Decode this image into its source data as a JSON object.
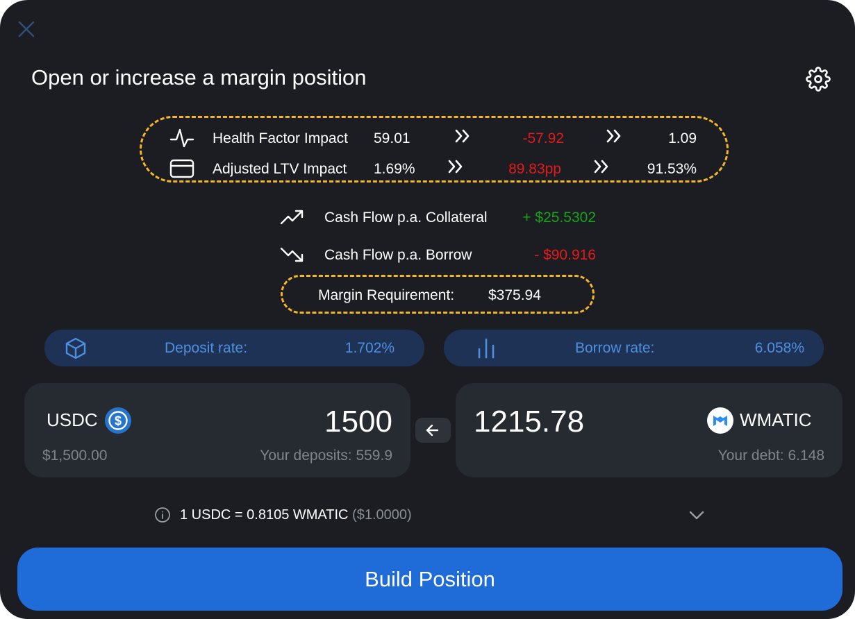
{
  "header": {
    "title": "Open or increase a margin position"
  },
  "impact": {
    "health": {
      "label": "Health Factor Impact",
      "current": "59.01",
      "delta": "-57.92",
      "result": "1.09"
    },
    "ltv": {
      "label": "Adjusted LTV Impact",
      "current": "1.69%",
      "delta": "89.83pp",
      "result": "91.53%"
    }
  },
  "cashflow": {
    "collateral": {
      "label": "Cash Flow p.a. Collateral",
      "value": "+ $25.5302"
    },
    "borrow": {
      "label": "Cash Flow p.a. Borrow",
      "value": "- $90.916"
    }
  },
  "margin": {
    "label": "Margin Requirement:",
    "value": "$375.94"
  },
  "rates": {
    "deposit": {
      "label": "Deposit rate:",
      "value": "1.702%"
    },
    "borrow": {
      "label": "Borrow rate:",
      "value": "6.058%"
    }
  },
  "deposit_card": {
    "token": "USDC",
    "amount": "1500",
    "usd_value": "$1,500.00",
    "balance": "Your deposits: 559.9"
  },
  "borrow_card": {
    "token": "WMATIC",
    "amount": "1215.78",
    "balance": "Your debt: 6.148"
  },
  "exchange": {
    "rate": "1 USDC = 0.8105 WMATIC",
    "usd": "($1.0000)"
  },
  "action": {
    "label": "Build Position"
  },
  "colors": {
    "background": "#1b1d22",
    "accent": "#1f6cd9",
    "highlight_border": "#f3b62b",
    "negative": "#e21b1b",
    "positive": "#19a319",
    "rate_text": "#4f8fe0",
    "rate_pill": "#1e3255"
  },
  "icons": {
    "close": "close-icon",
    "settings": "gear-icon",
    "health": "pulse-icon",
    "ltv": "credit-card-icon",
    "collateral": "trending-up-icon",
    "borrow": "trending-down-icon",
    "deposit_rate": "cube-icon",
    "borrow_rate": "bar-chart-icon",
    "swap": "arrow-left-icon",
    "info": "info-icon",
    "expand": "chevron-down-icon"
  }
}
